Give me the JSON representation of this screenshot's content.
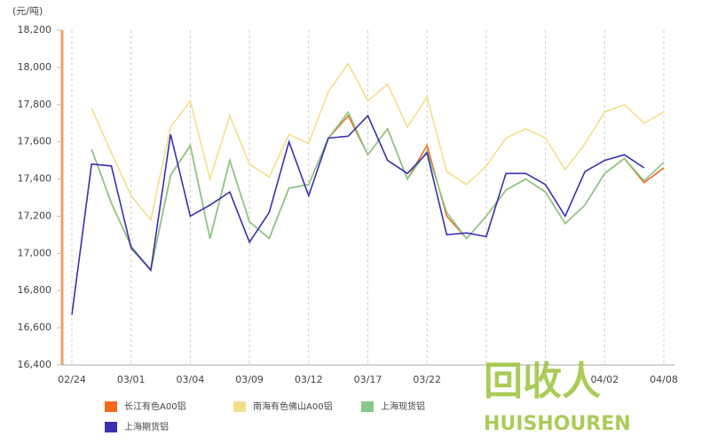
{
  "chart_data": {
    "type": "line",
    "y_unit": "(元/吨)",
    "categories": [
      "02/24",
      null,
      null,
      "03/01",
      null,
      null,
      "03/04",
      null,
      null,
      "03/09",
      null,
      null,
      "03/12",
      null,
      null,
      "03/17",
      null,
      null,
      "03/22",
      null,
      null,
      null,
      null,
      null,
      null,
      null,
      null,
      "04/02",
      null,
      null,
      "04/08"
    ],
    "ylim": [
      16400,
      18200
    ],
    "yticks": [
      {
        "value": 16400,
        "label": "16,400"
      },
      {
        "value": 16600,
        "label": "16,600"
      },
      {
        "value": 16800,
        "label": "16,800"
      },
      {
        "value": 17000,
        "label": "17,000"
      },
      {
        "value": 17200,
        "label": "17,200"
      },
      {
        "value": 17400,
        "label": "17,400"
      },
      {
        "value": 17600,
        "label": "17,600"
      },
      {
        "value": 17800,
        "label": "17,800"
      },
      {
        "value": 18000,
        "label": "18,000"
      },
      {
        "value": 18200,
        "label": "18,200"
      }
    ],
    "series": [
      {
        "name": "长江有色A00铝",
        "color": "#f26b1d",
        "values": [
          null,
          17560,
          17270,
          17040,
          16910,
          17420,
          17580,
          17080,
          17500,
          17170,
          17080,
          17350,
          17370,
          17620,
          17740,
          17530,
          17670,
          17400,
          17580,
          17200,
          17080,
          17200,
          17340,
          17400,
          17330,
          17160,
          17260,
          17430,
          17510,
          17380,
          17460
        ]
      },
      {
        "name": "南海有色佛山A00铝",
        "color": "#f3df8a",
        "values": [
          null,
          17780,
          17540,
          17310,
          17180,
          17680,
          17820,
          17400,
          17740,
          17480,
          17410,
          17640,
          17590,
          17870,
          18020,
          17820,
          17910,
          17680,
          17840,
          17440,
          17370,
          17470,
          17620,
          17670,
          17620,
          17450,
          17590,
          17760,
          17800,
          17700,
          17760
        ]
      },
      {
        "name": "上海现货铝",
        "color": "#86c98a",
        "values": [
          null,
          17560,
          17270,
          17040,
          16910,
          17420,
          17580,
          17080,
          17500,
          17170,
          17080,
          17350,
          17370,
          17620,
          17760,
          17530,
          17670,
          17400,
          17550,
          17220,
          17080,
          17200,
          17340,
          17400,
          17330,
          17160,
          17260,
          17430,
          17510,
          17390,
          17490
        ]
      },
      {
        "name": "上海期货铝",
        "color": "#3b2fb0",
        "values": [
          16670,
          17480,
          17470,
          17030,
          16910,
          17640,
          17200,
          17260,
          17330,
          17060,
          17220,
          17600,
          17310,
          17620,
          17630,
          17740,
          17500,
          17430,
          17540,
          17100,
          17110,
          17090,
          17430,
          17430,
          17370,
          17200,
          17440,
          17500,
          17530,
          17460,
          null
        ]
      }
    ],
    "watermark": {
      "logo": "回收人",
      "text": "HUISHOUREN"
    }
  }
}
